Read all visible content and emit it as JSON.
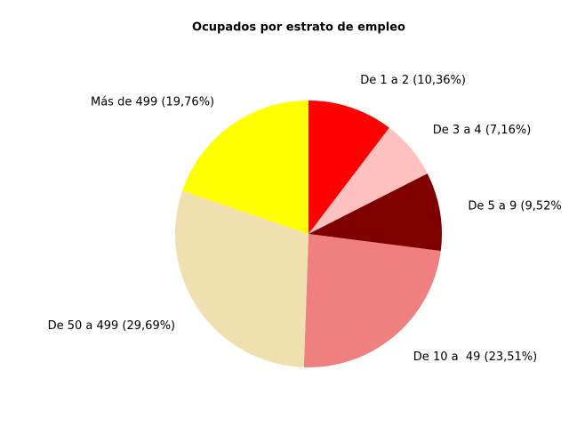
{
  "chart_data": {
    "type": "pie",
    "title": "Ocupados por estrato de empleo",
    "categories": [
      "De 1 a 2 (10,36%)",
      "De 3 a 4 (7,16%)",
      "De 5 a 9 (9,52%",
      "De 10 a  49 (23,51%)",
      "De 50 a 499 (29,69%)",
      "Más de 499 (19,76%)"
    ],
    "values": [
      10.36,
      7.16,
      9.52,
      23.51,
      29.69,
      19.76
    ],
    "colors": [
      "#ff0000",
      "#ffc0c0",
      "#800000",
      "#f08080",
      "#f0e0b0",
      "#ffff00"
    ]
  }
}
